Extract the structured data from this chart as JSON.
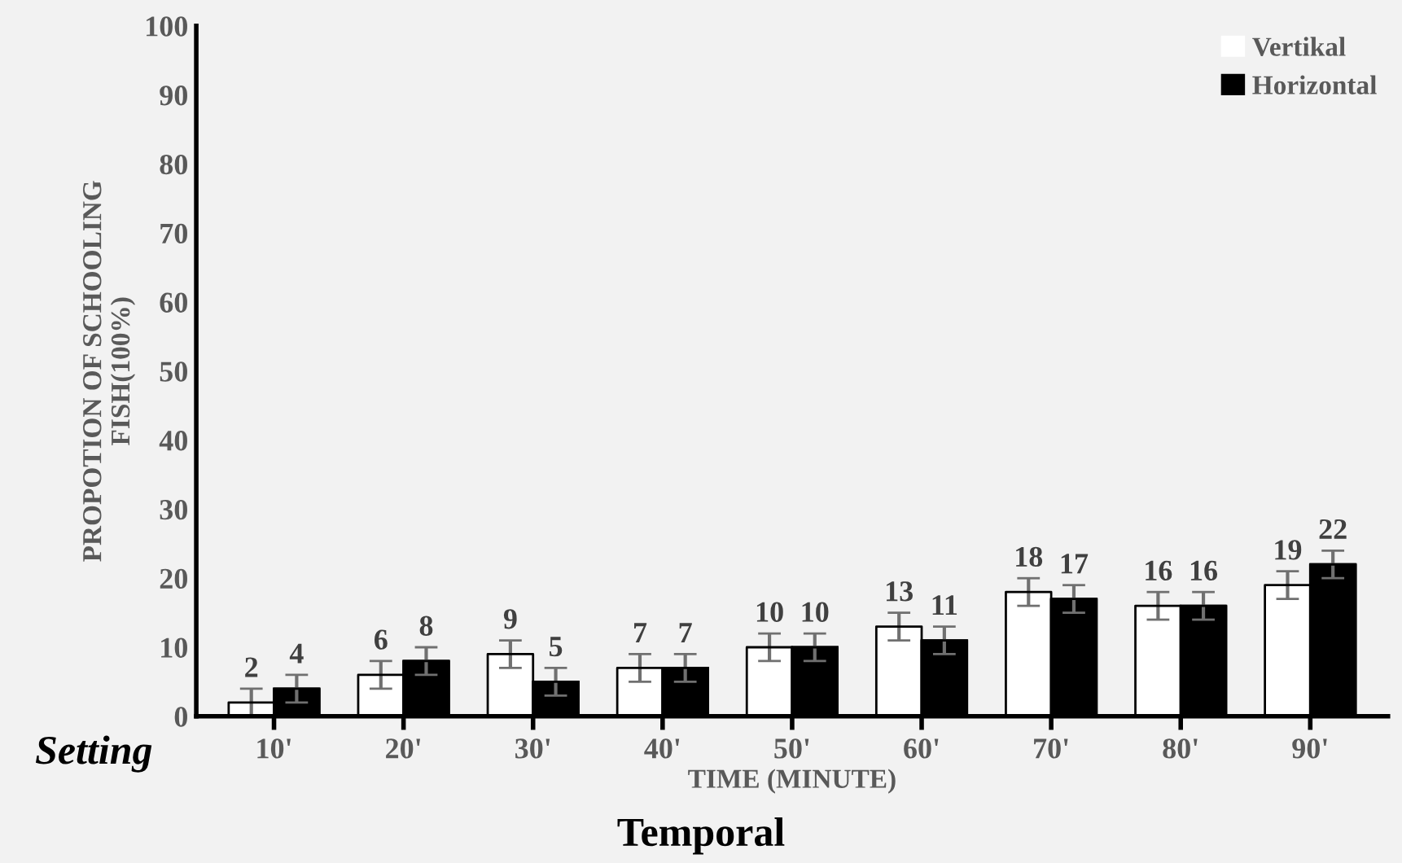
{
  "chart_data": {
    "type": "bar",
    "xlabel": "TIME (MINUTE)",
    "ylabel": "PROPOTION OF SCHOOLING\nFISH(100%)",
    "categories": [
      "10'",
      "20'",
      "30'",
      "40'",
      "50'",
      "60'",
      "70'",
      "80'",
      "90'"
    ],
    "series": [
      {
        "name": "Vertikal",
        "color": "#ffffff",
        "values": [
          2,
          6,
          9,
          7,
          10,
          13,
          18,
          16,
          19
        ],
        "errors": [
          2,
          2,
          2,
          2,
          2,
          2,
          2,
          2,
          2
        ]
      },
      {
        "name": "Horizontal",
        "color": "#000000",
        "values": [
          4,
          8,
          5,
          7,
          10,
          11,
          17,
          16,
          22
        ],
        "errors": [
          2,
          2,
          2,
          2,
          2,
          2,
          2,
          2,
          2
        ]
      }
    ],
    "ylim": [
      0,
      100
    ],
    "yticks": [
      0,
      10,
      20,
      30,
      40,
      50,
      60,
      70,
      80,
      90,
      100
    ],
    "grid": false,
    "legend": "top right",
    "data_labels": true,
    "annotations": [
      "Setting",
      "Temporal"
    ]
  }
}
